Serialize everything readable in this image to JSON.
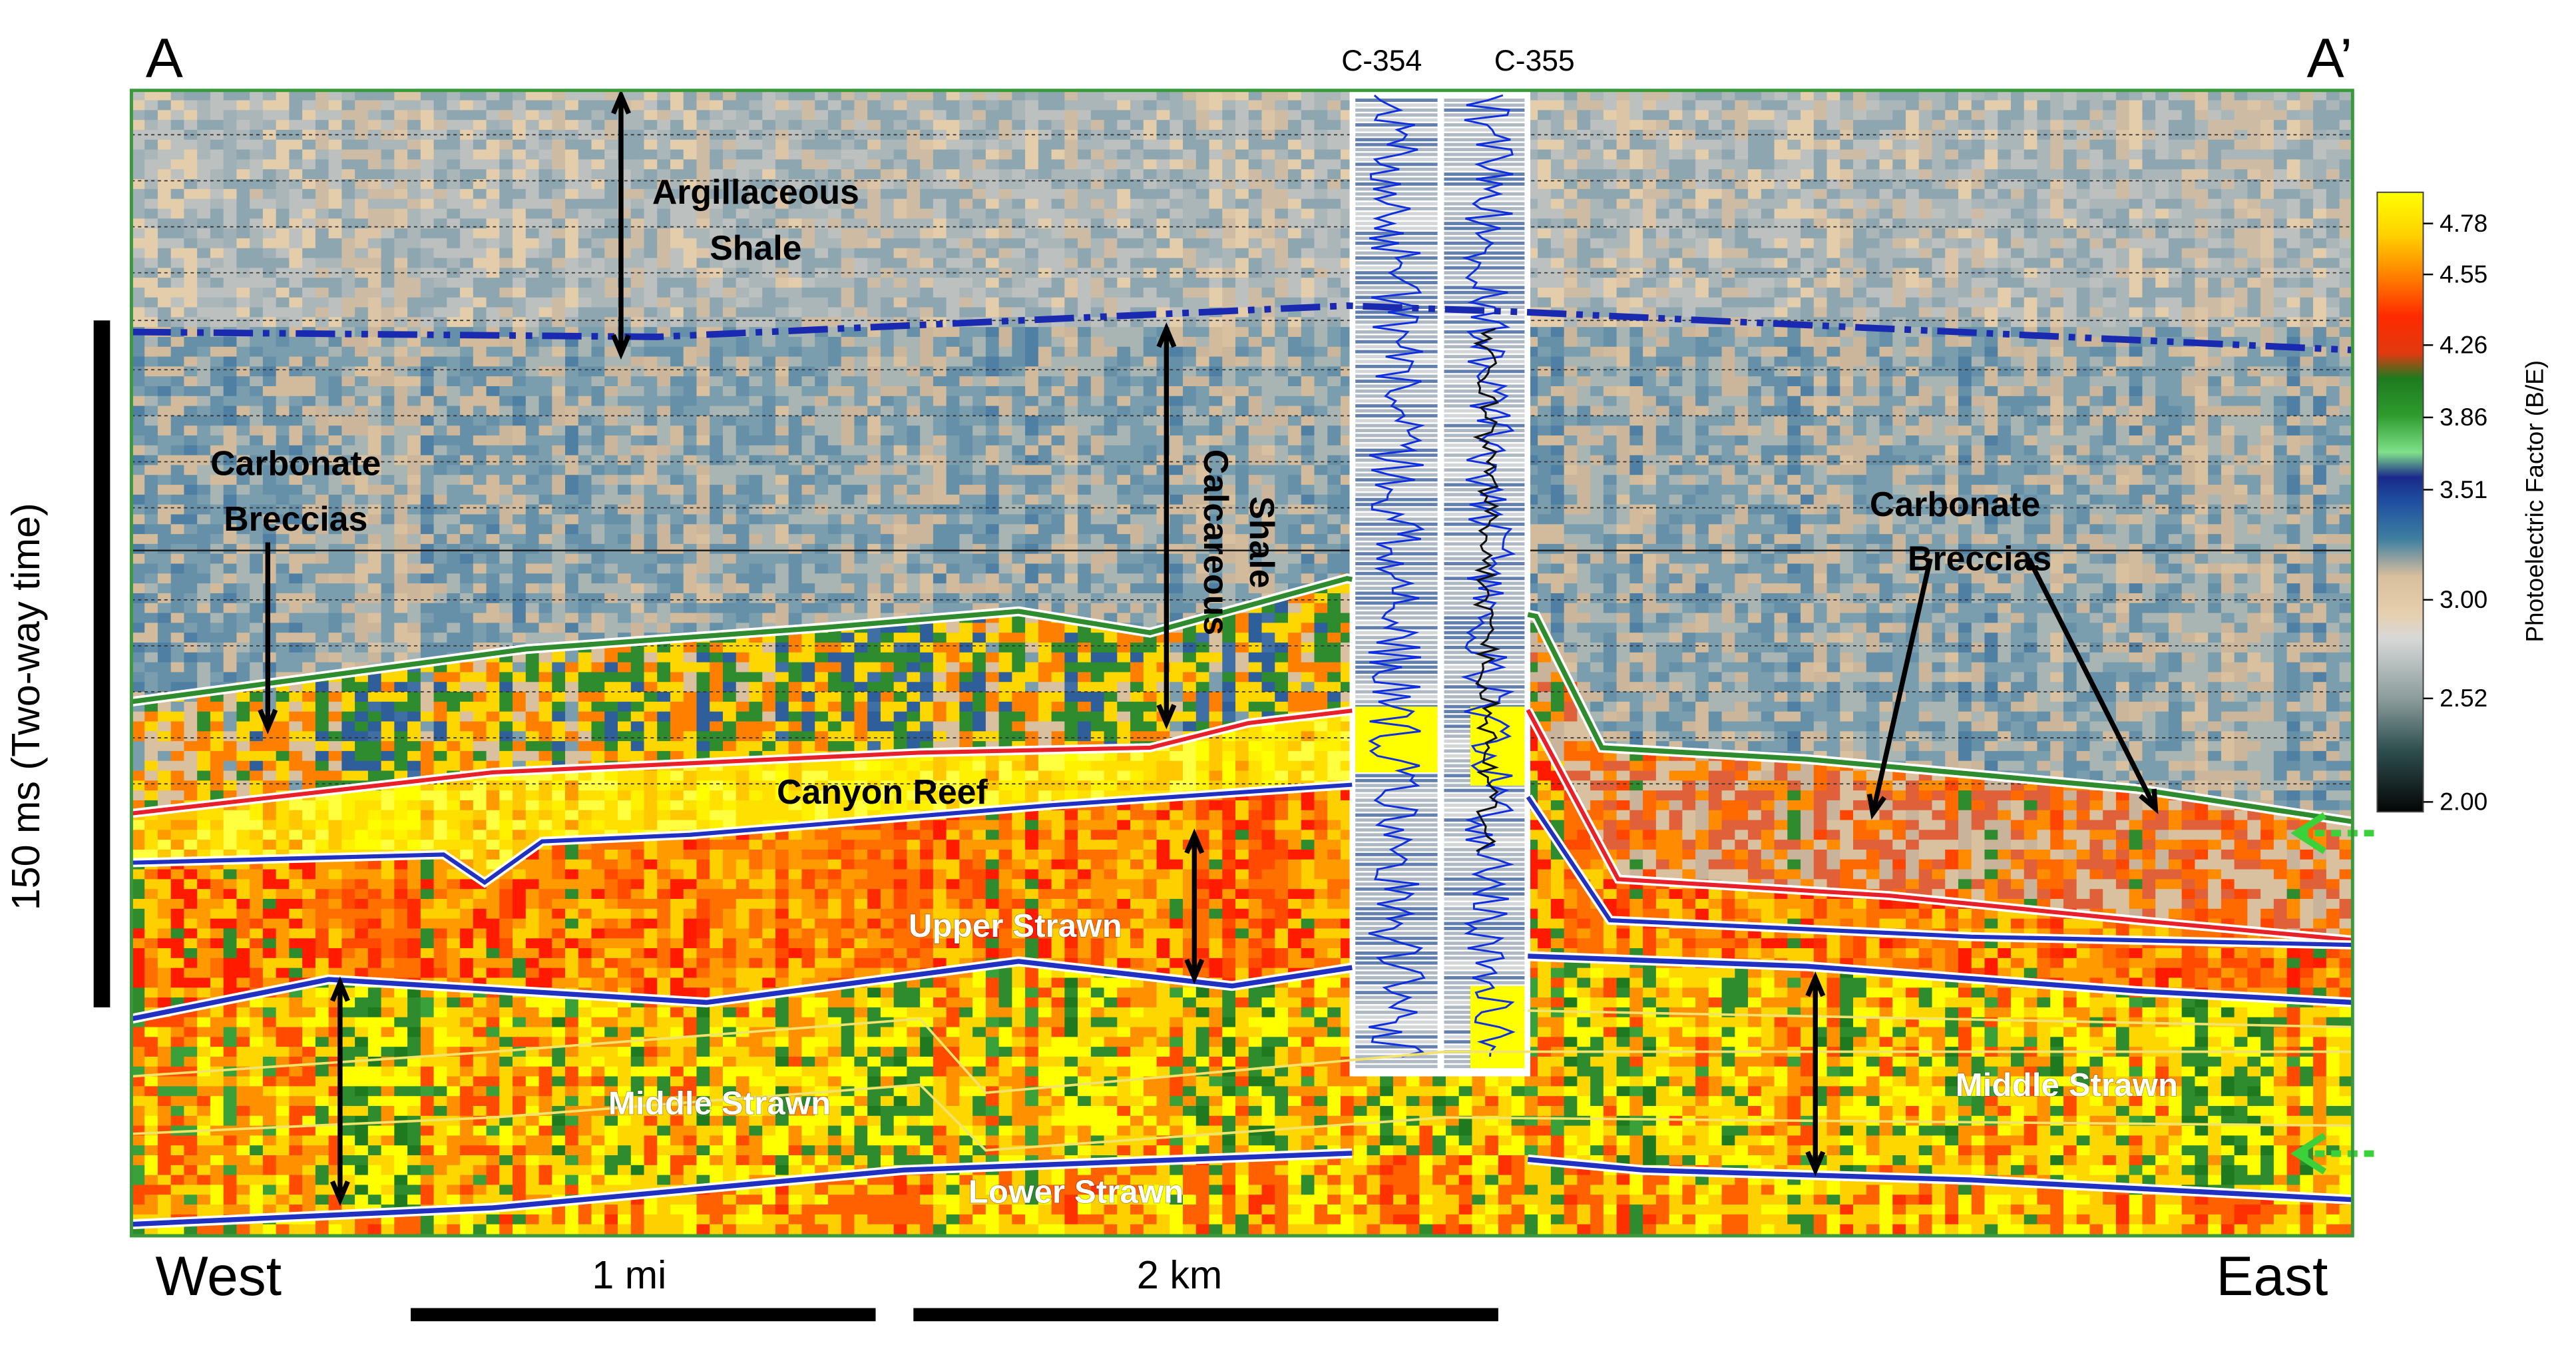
{
  "header": {
    "left": "A",
    "right": "A’"
  },
  "wells": [
    "C-354",
    "C-355"
  ],
  "labels": {
    "argillaceous_shale": [
      "Argillaceous",
      "Shale"
    ],
    "calcareous_shale": [
      "Calcareous",
      "Shale"
    ],
    "carbonate_breccias_west": [
      "Carbonate",
      "Breccias"
    ],
    "carbonate_breccias_east": [
      "Carbonate",
      "Breccias"
    ],
    "canyon_reef": "Canyon Reef",
    "upper_strawn": "Upper Strawn",
    "middle_strawn_west": "Middle Strawn",
    "middle_strawn_east": "Middle Strawn",
    "lower_strawn": "Lower Strawn"
  },
  "colorbar": {
    "label": "Photoelectric Factor (B/E)",
    "ticks": [
      4.78,
      4.55,
      4.26,
      3.86,
      3.51,
      {
        "value": 3,
        "label": "3.00"
      },
      2.52,
      {
        "value": 2,
        "label": "2.00"
      }
    ]
  },
  "vertical_scale": "150 ms (Two-way time)",
  "footer": {
    "west": "West",
    "east": "East",
    "scale_mi": "1 mi",
    "scale_km": "2 km"
  }
}
